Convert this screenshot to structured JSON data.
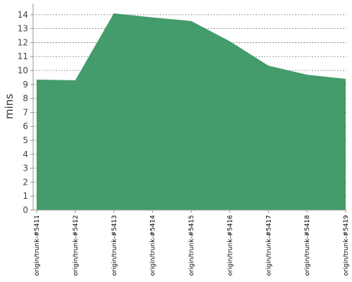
{
  "chart_data": {
    "type": "area",
    "title": "",
    "xlabel": "",
    "ylabel": "mins",
    "ylim": [
      0,
      14.8
    ],
    "yticks": [
      0,
      1,
      2,
      3,
      4,
      5,
      6,
      7,
      8,
      9,
      10,
      11,
      12,
      13,
      14
    ],
    "grid": true,
    "categories": [
      "origin/trunk-#5411",
      "origin/trunk-#5412",
      "origin/trunk-#5413",
      "origin/trunk-#5414",
      "origin/trunk-#5415",
      "origin/trunk-#5416",
      "origin/trunk-#5417",
      "origin/trunk-#5418",
      "origin/trunk-#5419"
    ],
    "series": [
      {
        "values": [
          9.35,
          9.3,
          14.1,
          13.8,
          13.55,
          12.1,
          10.35,
          9.7,
          9.4
        ],
        "color": "#449b6b"
      }
    ]
  }
}
